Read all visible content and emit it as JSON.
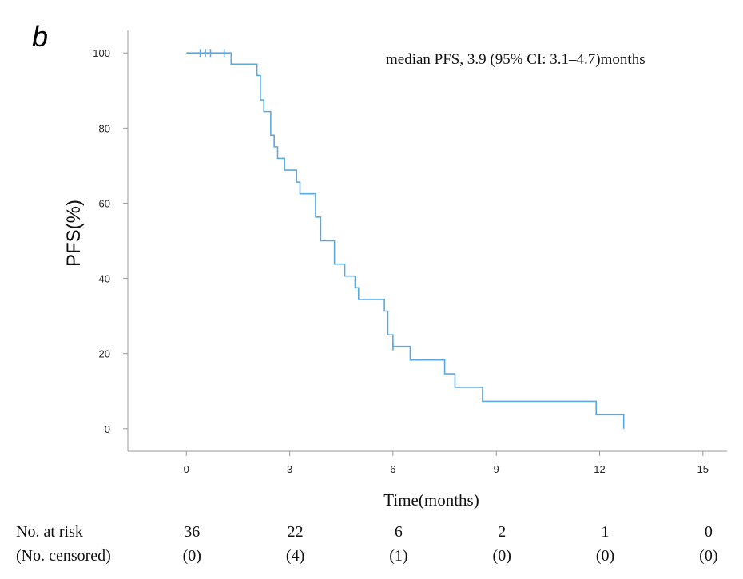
{
  "chart_data": {
    "type": "line",
    "subtype": "kaplan-meier-step",
    "panel_label": "b",
    "annotation": "median PFS, 3.9  (95% CI: 3.1–4.7)months",
    "xlabel": "Time(months)",
    "ylabel": "PFS(%)",
    "xlim": [
      -1.7,
      15.7
    ],
    "ylim": [
      -6,
      106
    ],
    "xticks": [
      0,
      3,
      6,
      9,
      12,
      15
    ],
    "yticks": [
      0,
      20,
      40,
      60,
      80,
      100
    ],
    "series": [
      {
        "name": "PFS",
        "color": "#5aaae0",
        "steps": [
          [
            0,
            100
          ],
          [
            1.3,
            97
          ],
          [
            2.05,
            94
          ],
          [
            2.15,
            87.5
          ],
          [
            2.25,
            84.4
          ],
          [
            2.45,
            78.1
          ],
          [
            2.55,
            75
          ],
          [
            2.65,
            71.9
          ],
          [
            2.85,
            68.8
          ],
          [
            3.2,
            65.6
          ],
          [
            3.3,
            62.5
          ],
          [
            3.75,
            56.3
          ],
          [
            3.9,
            50
          ],
          [
            4.3,
            43.8
          ],
          [
            4.6,
            40.6
          ],
          [
            4.9,
            37.5
          ],
          [
            5.0,
            34.4
          ],
          [
            5.75,
            31.3
          ],
          [
            5.85,
            25
          ],
          [
            6.0,
            21.9
          ],
          [
            6.5,
            18.3
          ],
          [
            7.5,
            14.6
          ],
          [
            7.8,
            11
          ],
          [
            8.6,
            7.3
          ],
          [
            11.9,
            3.7
          ],
          [
            12.7,
            0
          ]
        ],
        "end_x": 12.7,
        "censored": [
          [
            0.4,
            100
          ],
          [
            0.55,
            100
          ],
          [
            0.7,
            100
          ],
          [
            1.1,
            100
          ],
          [
            6.0,
            21.9
          ]
        ]
      }
    ],
    "risk_table": {
      "row_labels": [
        "No. at risk",
        "(No. censored)"
      ],
      "timepoints": [
        0,
        3,
        6,
        9,
        12,
        15
      ],
      "at_risk": [
        "36",
        "22",
        "6",
        "2",
        "1",
        "0"
      ],
      "censored": [
        "(0)",
        "(4)",
        "(1)",
        "(0)",
        "(0)",
        "(0)"
      ]
    }
  }
}
